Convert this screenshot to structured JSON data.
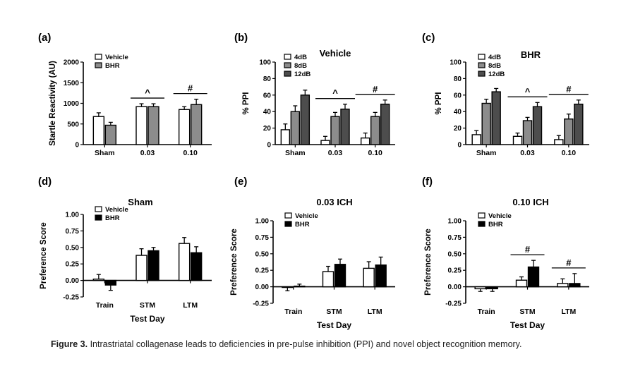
{
  "caption": {
    "label": "Figure 3.",
    "text": "Intrastriatal collagenase leads to deficiencies in pre-pulse inhibition (PPI) and novel object recognition memory."
  },
  "colors": {
    "white": "#ffffff",
    "gray": "#8c8c8c",
    "dark": "#4d4d4d",
    "black": "#000000"
  },
  "chart_data": [
    {
      "panel": "(a)",
      "type": "bar",
      "title": "",
      "xlabel": "",
      "ylabel": "Startle  Reactivity (AU)",
      "ylim": [
        0,
        2000
      ],
      "yticks": [
        "0",
        "500",
        "1000",
        "1500",
        "2000"
      ],
      "categories": [
        "Sham",
        "0.03",
        "0.10"
      ],
      "series": [
        {
          "name": "Vehicle",
          "color": "#ffffff",
          "values": [
            680,
            920,
            850
          ],
          "err": [
            90,
            70,
            70
          ]
        },
        {
          "name": "BHR",
          "color": "#8c8c8c",
          "values": [
            470,
            920,
            970
          ],
          "err": [
            70,
            70,
            130
          ]
        }
      ],
      "annotations": [
        {
          "group": 1,
          "symbol": "^"
        },
        {
          "group": 2,
          "symbol": "#"
        }
      ]
    },
    {
      "panel": "(b)",
      "type": "bar",
      "title": "Vehicle",
      "xlabel": "",
      "ylabel": "% PPI",
      "ylim": [
        0,
        100
      ],
      "yticks": [
        "0",
        "20",
        "40",
        "60",
        "80",
        "100"
      ],
      "categories": [
        "Sham",
        "0.03",
        "0.10"
      ],
      "series": [
        {
          "name": "4dB",
          "color": "#ffffff",
          "values": [
            18,
            5,
            8
          ],
          "err": [
            7,
            5,
            6
          ]
        },
        {
          "name": "8dB",
          "color": "#8c8c8c",
          "values": [
            40,
            34,
            34
          ],
          "err": [
            7,
            5,
            5
          ]
        },
        {
          "name": "12dB",
          "color": "#4d4d4d",
          "values": [
            60,
            43,
            49
          ],
          "err": [
            6,
            6,
            5
          ]
        }
      ],
      "annotations": [
        {
          "group": 1,
          "symbol": "^"
        },
        {
          "group": 2,
          "symbol": "#"
        }
      ]
    },
    {
      "panel": "(c)",
      "type": "bar",
      "title": "BHR",
      "xlabel": "",
      "ylabel": "% PPI",
      "ylim": [
        0,
        100
      ],
      "yticks": [
        "0",
        "20",
        "40",
        "60",
        "80",
        "100"
      ],
      "categories": [
        "Sham",
        "0.03",
        "0.10"
      ],
      "series": [
        {
          "name": "4dB",
          "color": "#ffffff",
          "values": [
            12,
            10,
            6
          ],
          "err": [
            5,
            4,
            5
          ]
        },
        {
          "name": "8dB",
          "color": "#8c8c8c",
          "values": [
            50,
            29,
            31
          ],
          "err": [
            5,
            4,
            6
          ]
        },
        {
          "name": "12dB",
          "color": "#4d4d4d",
          "values": [
            64,
            46,
            49
          ],
          "err": [
            4,
            5,
            5
          ]
        }
      ],
      "annotations": [
        {
          "group": 1,
          "symbol": "^"
        },
        {
          "group": 2,
          "symbol": "#"
        }
      ]
    },
    {
      "panel": "(d)",
      "type": "bar",
      "title": "Sham",
      "xlabel": "Test Day",
      "ylabel": "Preference Score",
      "ylim": [
        -0.25,
        1.0
      ],
      "yticks": [
        "-0.25",
        "0.00",
        "0.25",
        "0.50",
        "0.75",
        "1.00"
      ],
      "categories": [
        "Train",
        "STM",
        "LTM"
      ],
      "series": [
        {
          "name": "Vehicle",
          "color": "#ffffff",
          "values": [
            0.02,
            0.38,
            0.56
          ],
          "err": [
            0.07,
            0.1,
            0.09
          ]
        },
        {
          "name": "BHR",
          "color": "#000000",
          "values": [
            -0.07,
            0.45,
            0.42
          ],
          "err": [
            0.08,
            0.05,
            0.09
          ]
        }
      ],
      "annotations": []
    },
    {
      "panel": "(e)",
      "type": "bar",
      "title": "0.03 ICH",
      "xlabel": "Test Day",
      "ylabel": "Preference Score",
      "ylim": [
        -0.25,
        1.0
      ],
      "yticks": [
        "-0.25",
        "0.00",
        "0.25",
        "0.50",
        "0.75",
        "1.00"
      ],
      "categories": [
        "Train",
        "STM",
        "LTM"
      ],
      "series": [
        {
          "name": "Vehicle",
          "color": "#ffffff",
          "values": [
            -0.01,
            0.23,
            0.28
          ],
          "err": [
            0.05,
            0.08,
            0.1
          ]
        },
        {
          "name": "BHR",
          "color": "#000000",
          "values": [
            0.01,
            0.34,
            0.33
          ],
          "err": [
            0.03,
            0.08,
            0.12
          ]
        }
      ],
      "annotations": []
    },
    {
      "panel": "(f)",
      "type": "bar",
      "title": "0.10 ICH",
      "xlabel": "Test Day",
      "ylabel": "Preference Score",
      "ylim": [
        -0.25,
        1.0
      ],
      "yticks": [
        "-0.25",
        "0.00",
        "0.25",
        "0.50",
        "0.75",
        "1.00"
      ],
      "categories": [
        "Train",
        "STM",
        "LTM"
      ],
      "series": [
        {
          "name": "Vehicle",
          "color": "#ffffff",
          "values": [
            -0.03,
            0.1,
            0.05
          ],
          "err": [
            0.04,
            0.05,
            0.07
          ]
        },
        {
          "name": "BHR",
          "color": "#000000",
          "values": [
            -0.03,
            0.3,
            0.05
          ],
          "err": [
            0.04,
            0.1,
            0.15
          ]
        }
      ],
      "annotations": [
        {
          "group": 1,
          "symbol": "#"
        },
        {
          "group": 2,
          "symbol": "#"
        }
      ]
    }
  ]
}
